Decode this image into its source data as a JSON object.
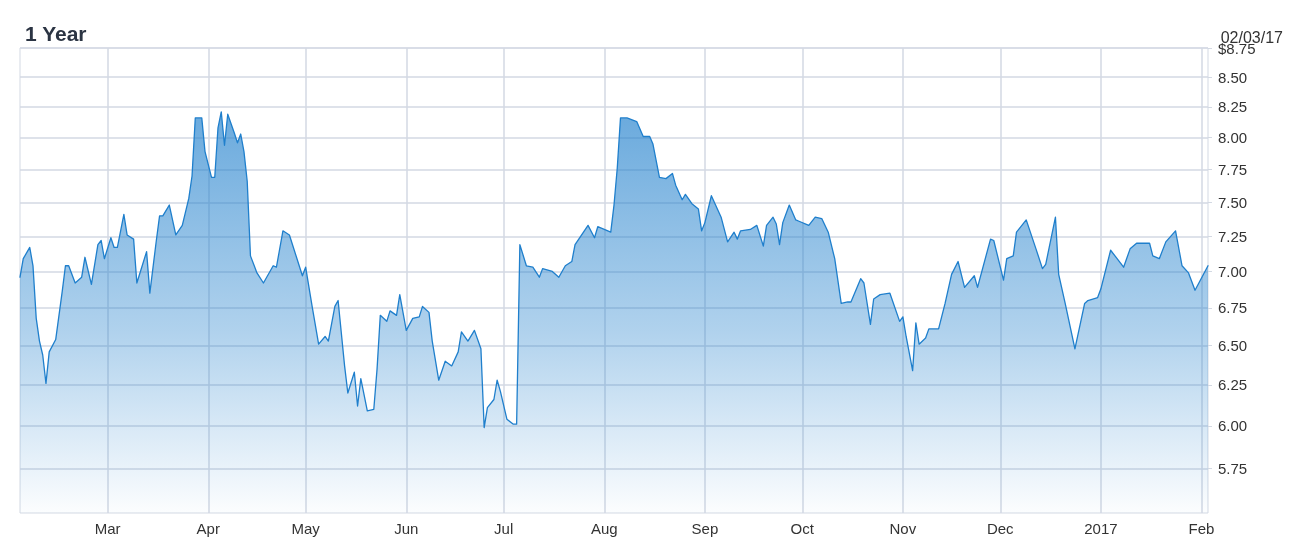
{
  "chart_data": {
    "type": "area",
    "title": "1 Year",
    "annotations": [
      "02/03/17"
    ],
    "log": "y",
    "grid": true,
    "marker": "none",
    "line_style": "solid",
    "xlim": [
      "2016-02-03",
      "2017-02-03"
    ],
    "xticks": [
      {
        "value": "2016-03-01",
        "label": "Mar"
      },
      {
        "value": "2016-04-01",
        "label": "Apr"
      },
      {
        "value": "2016-05-01",
        "label": "May"
      },
      {
        "value": "2016-06-01",
        "label": "Jun"
      },
      {
        "value": "2016-07-01",
        "label": "Jul"
      },
      {
        "value": "2016-08-01",
        "label": "Aug"
      },
      {
        "value": "2016-09-01",
        "label": "Sep"
      },
      {
        "value": "2016-10-01",
        "label": "Oct"
      },
      {
        "value": "2016-11-01",
        "label": "Nov"
      },
      {
        "value": "2016-12-01",
        "label": "Dec"
      },
      {
        "value": "2017-01-01",
        "label": "2017"
      },
      {
        "value": "2017-02-01",
        "label": "Feb"
      }
    ],
    "ylim": [
      5.5,
      8.75
    ],
    "yticks": [
      {
        "value": 5.75,
        "label": "5.75"
      },
      {
        "value": 6,
        "label": "6.00"
      },
      {
        "value": 6.25,
        "label": "6.25"
      },
      {
        "value": 6.5,
        "label": "6.50"
      },
      {
        "value": 6.75,
        "label": "6.75"
      },
      {
        "value": 7,
        "label": "7.00"
      },
      {
        "value": 7.25,
        "label": "7.25"
      },
      {
        "value": 7.5,
        "label": "7.50"
      },
      {
        "value": 7.75,
        "label": "7.75"
      },
      {
        "value": 8,
        "label": "8.00"
      },
      {
        "value": 8.25,
        "label": "8.25"
      },
      {
        "value": 8.5,
        "label": "8.50"
      },
      {
        "value": 8.75,
        "label": "$8.75"
      }
    ],
    "series": [
      {
        "color": "#1f7fcc",
        "x": [
          "2016-02-03",
          "2016-02-04",
          "2016-02-06",
          "2016-02-07",
          "2016-02-08",
          "2016-02-09",
          "2016-02-10",
          "2016-02-11",
          "2016-02-12",
          "2016-02-14",
          "2016-02-16",
          "2016-02-17",
          "2016-02-18",
          "2016-02-20",
          "2016-02-22",
          "2016-02-23",
          "2016-02-25",
          "2016-02-27",
          "2016-02-28",
          "2016-02-29",
          "2016-03-02",
          "2016-03-03",
          "2016-03-04",
          "2016-03-06",
          "2016-03-07",
          "2016-03-09",
          "2016-03-10",
          "2016-03-13",
          "2016-03-14",
          "2016-03-16",
          "2016-03-17",
          "2016-03-18",
          "2016-03-20",
          "2016-03-22",
          "2016-03-24",
          "2016-03-26",
          "2016-03-27",
          "2016-03-28",
          "2016-03-30",
          "2016-03-31",
          "2016-04-02",
          "2016-04-03",
          "2016-04-04",
          "2016-04-05",
          "2016-04-06",
          "2016-04-07",
          "2016-04-09",
          "2016-04-10",
          "2016-04-11",
          "2016-04-12",
          "2016-04-13",
          "2016-04-14",
          "2016-04-16",
          "2016-04-18",
          "2016-04-21",
          "2016-04-22",
          "2016-04-24",
          "2016-04-26",
          "2016-04-30",
          "2016-05-01",
          "2016-05-03",
          "2016-05-05",
          "2016-05-07",
          "2016-05-08",
          "2016-05-10",
          "2016-05-11",
          "2016-05-13",
          "2016-05-14",
          "2016-05-16",
          "2016-05-17",
          "2016-05-18",
          "2016-05-20",
          "2016-05-22",
          "2016-05-23",
          "2016-05-24",
          "2016-05-26",
          "2016-05-27",
          "2016-05-29",
          "2016-05-30",
          "2016-06-01",
          "2016-06-03",
          "2016-06-05",
          "2016-06-06",
          "2016-06-08",
          "2016-06-09",
          "2016-06-11",
          "2016-06-13",
          "2016-06-15",
          "2016-06-17",
          "2016-06-18",
          "2016-06-20",
          "2016-06-22",
          "2016-06-24",
          "2016-06-25",
          "2016-06-26",
          "2016-06-28",
          "2016-06-29",
          "2016-06-30",
          "2016-07-02",
          "2016-07-04",
          "2016-07-05",
          "2016-07-06",
          "2016-07-08",
          "2016-07-10",
          "2016-07-12",
          "2016-07-13",
          "2016-07-16",
          "2016-07-18",
          "2016-07-20",
          "2016-07-22",
          "2016-07-23",
          "2016-07-27",
          "2016-07-29",
          "2016-07-30",
          "2016-08-03",
          "2016-08-04",
          "2016-08-05",
          "2016-08-06",
          "2016-08-08",
          "2016-08-11",
          "2016-08-13",
          "2016-08-15",
          "2016-08-16",
          "2016-08-18",
          "2016-08-20",
          "2016-08-22",
          "2016-08-23",
          "2016-08-25",
          "2016-08-26",
          "2016-08-28",
          "2016-08-30",
          "2016-08-31",
          "2016-09-01",
          "2016-09-03",
          "2016-09-06",
          "2016-09-08",
          "2016-09-10",
          "2016-09-11",
          "2016-09-12",
          "2016-09-15",
          "2016-09-17",
          "2016-09-19",
          "2016-09-20",
          "2016-09-22",
          "2016-09-23",
          "2016-09-24",
          "2016-09-25",
          "2016-09-27",
          "2016-09-29",
          "2016-09-30",
          "2016-10-03",
          "2016-10-05",
          "2016-10-07",
          "2016-10-09",
          "2016-10-11",
          "2016-10-13",
          "2016-10-15",
          "2016-10-16",
          "2016-10-19",
          "2016-10-20",
          "2016-10-22",
          "2016-10-23",
          "2016-10-25",
          "2016-10-28",
          "2016-10-31",
          "2016-11-01",
          "2016-11-02",
          "2016-11-04",
          "2016-11-05",
          "2016-11-06",
          "2016-11-08",
          "2016-11-09",
          "2016-11-12",
          "2016-11-14",
          "2016-11-16",
          "2016-11-18",
          "2016-11-20",
          "2016-11-23",
          "2016-11-24",
          "2016-11-28",
          "2016-11-29",
          "2016-12-02",
          "2016-12-03",
          "2016-12-05",
          "2016-12-06",
          "2016-12-09",
          "2016-12-12",
          "2016-12-14",
          "2016-12-15",
          "2016-12-18",
          "2016-12-19",
          "2016-12-21",
          "2016-12-24",
          "2016-12-27",
          "2016-12-28",
          "2016-12-31",
          "2017-01-01",
          "2017-01-04",
          "2017-01-06",
          "2017-01-08",
          "2017-01-10",
          "2017-01-12",
          "2017-01-16",
          "2017-01-17",
          "2017-01-19",
          "2017-01-21",
          "2017-01-24",
          "2017-01-26",
          "2017-01-28",
          "2017-01-30",
          "2017-02-03"
        ],
        "values": [
          6.96,
          7.09,
          7.17,
          7.04,
          6.68,
          6.53,
          6.44,
          6.26,
          6.46,
          6.54,
          6.86,
          7.04,
          7.04,
          6.92,
          6.96,
          7.1,
          6.91,
          7.19,
          7.22,
          7.09,
          7.24,
          7.17,
          7.17,
          7.41,
          7.26,
          7.23,
          6.92,
          7.14,
          6.85,
          7.22,
          7.4,
          7.4,
          7.48,
          7.26,
          7.33,
          7.53,
          7.7,
          8.16,
          8.16,
          7.89,
          7.69,
          7.69,
          8.08,
          8.21,
          7.94,
          8.19,
          8.04,
          7.96,
          8.03,
          7.89,
          7.66,
          7.11,
          6.99,
          6.92,
          7.04,
          7.03,
          7.29,
          7.26,
          6.97,
          7.03,
          6.76,
          6.51,
          6.56,
          6.53,
          6.76,
          6.8,
          6.37,
          6.2,
          6.33,
          6.12,
          6.29,
          6.09,
          6.1,
          6.35,
          6.7,
          6.66,
          6.73,
          6.7,
          6.84,
          6.6,
          6.68,
          6.69,
          6.76,
          6.72,
          6.53,
          6.28,
          6.4,
          6.37,
          6.46,
          6.59,
          6.53,
          6.6,
          6.48,
          5.99,
          6.11,
          6.16,
          6.28,
          6.21,
          6.04,
          6.01,
          6.01,
          7.19,
          7.04,
          7.03,
          6.96,
          7.02,
          7,
          6.96,
          7.04,
          7.07,
          7.19,
          7.33,
          7.24,
          7.32,
          7.28,
          7.48,
          7.76,
          8.16,
          8.16,
          8.13,
          8.01,
          8.01,
          7.95,
          7.69,
          7.68,
          7.72,
          7.63,
          7.52,
          7.56,
          7.49,
          7.45,
          7.29,
          7.35,
          7.55,
          7.39,
          7.21,
          7.28,
          7.23,
          7.29,
          7.3,
          7.33,
          7.18,
          7.33,
          7.39,
          7.34,
          7.19,
          7.35,
          7.48,
          7.37,
          7.36,
          7.33,
          7.39,
          7.38,
          7.28,
          7.09,
          6.78,
          6.79,
          6.79,
          6.95,
          6.92,
          6.64,
          6.81,
          6.84,
          6.85,
          6.66,
          6.69,
          6.56,
          6.34,
          6.65,
          6.51,
          6.55,
          6.61,
          6.61,
          6.78,
          6.98,
          7.07,
          6.89,
          6.97,
          6.89,
          7.23,
          7.22,
          6.94,
          7.09,
          7.11,
          7.28,
          7.37,
          7.16,
          7.02,
          7.05,
          7.39,
          6.98,
          6.78,
          6.48,
          6.78,
          6.8,
          6.82,
          6.88,
          7.15,
          7.09,
          7.03,
          7.16,
          7.2,
          7.2,
          7.11,
          7.09,
          7.21,
          7.29,
          7.04,
          6.99,
          6.87,
          7.04
        ]
      }
    ]
  }
}
